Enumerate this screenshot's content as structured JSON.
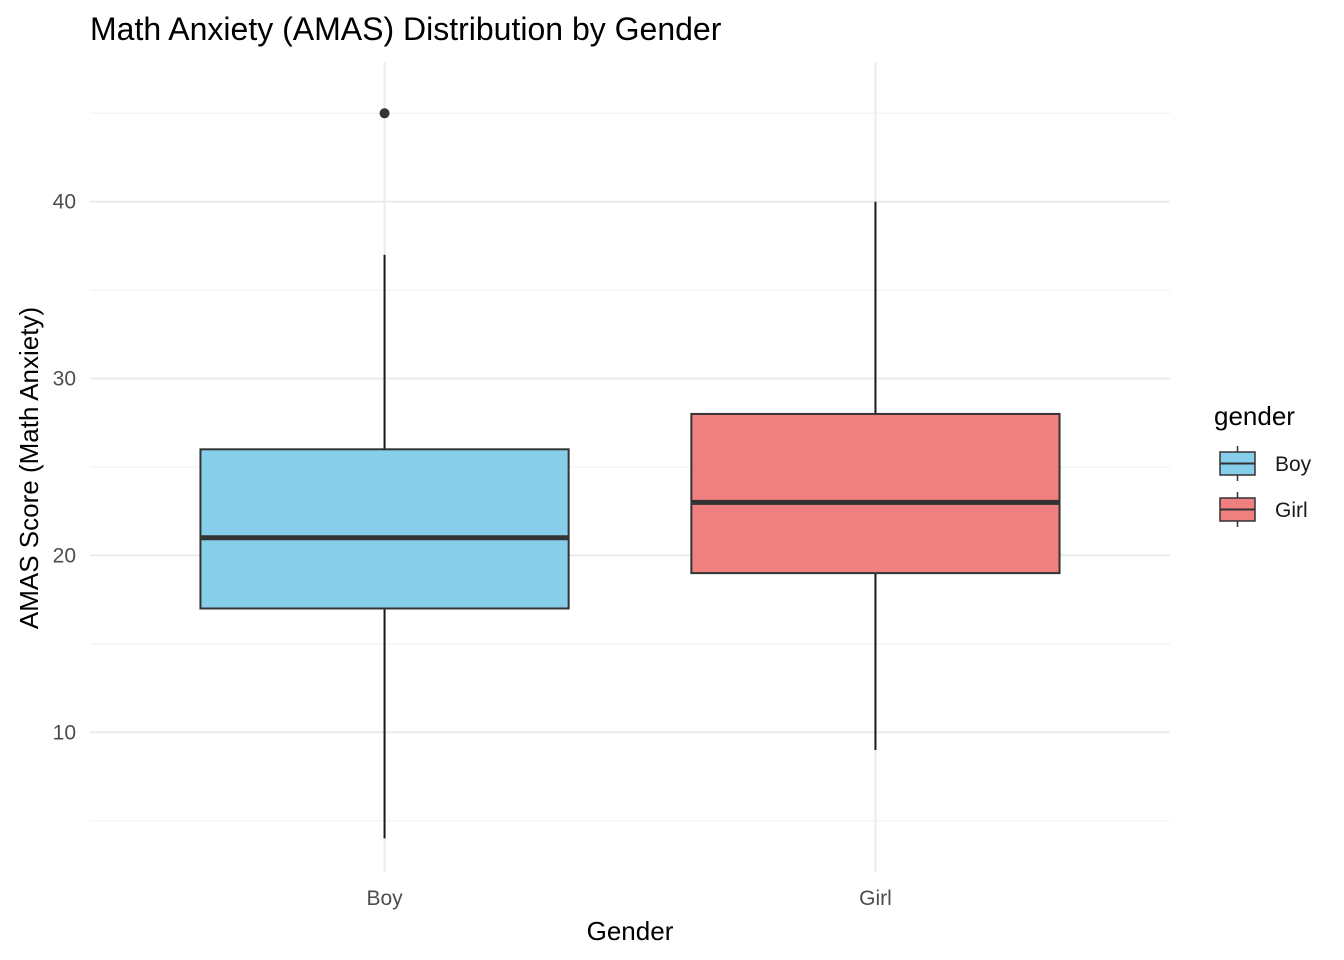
{
  "chart_data": {
    "type": "boxplot",
    "title": "Math Anxiety (AMAS) Distribution by Gender",
    "xlabel": "Gender",
    "ylabel": "AMAS Score (Math Anxiety)",
    "categories": [
      "Boy",
      "Girl"
    ],
    "ylim": [
      2.1,
      47.9
    ],
    "y_ticks": [
      10,
      20,
      30,
      40
    ],
    "grid": true,
    "legend": {
      "title": "gender",
      "position": "right",
      "entries": [
        "Boy",
        "Girl"
      ]
    },
    "boxes": [
      {
        "category": "Boy",
        "whisker_low": 4,
        "q1": 17,
        "median": 21,
        "q3": 26,
        "whisker_high": 37,
        "outliers": [
          45
        ],
        "color": "#87CEEB"
      },
      {
        "category": "Girl",
        "whisker_low": 9,
        "q1": 19,
        "median": 23,
        "q3": 28,
        "whisker_high": 40,
        "outliers": [],
        "color": "#F08080"
      }
    ]
  }
}
